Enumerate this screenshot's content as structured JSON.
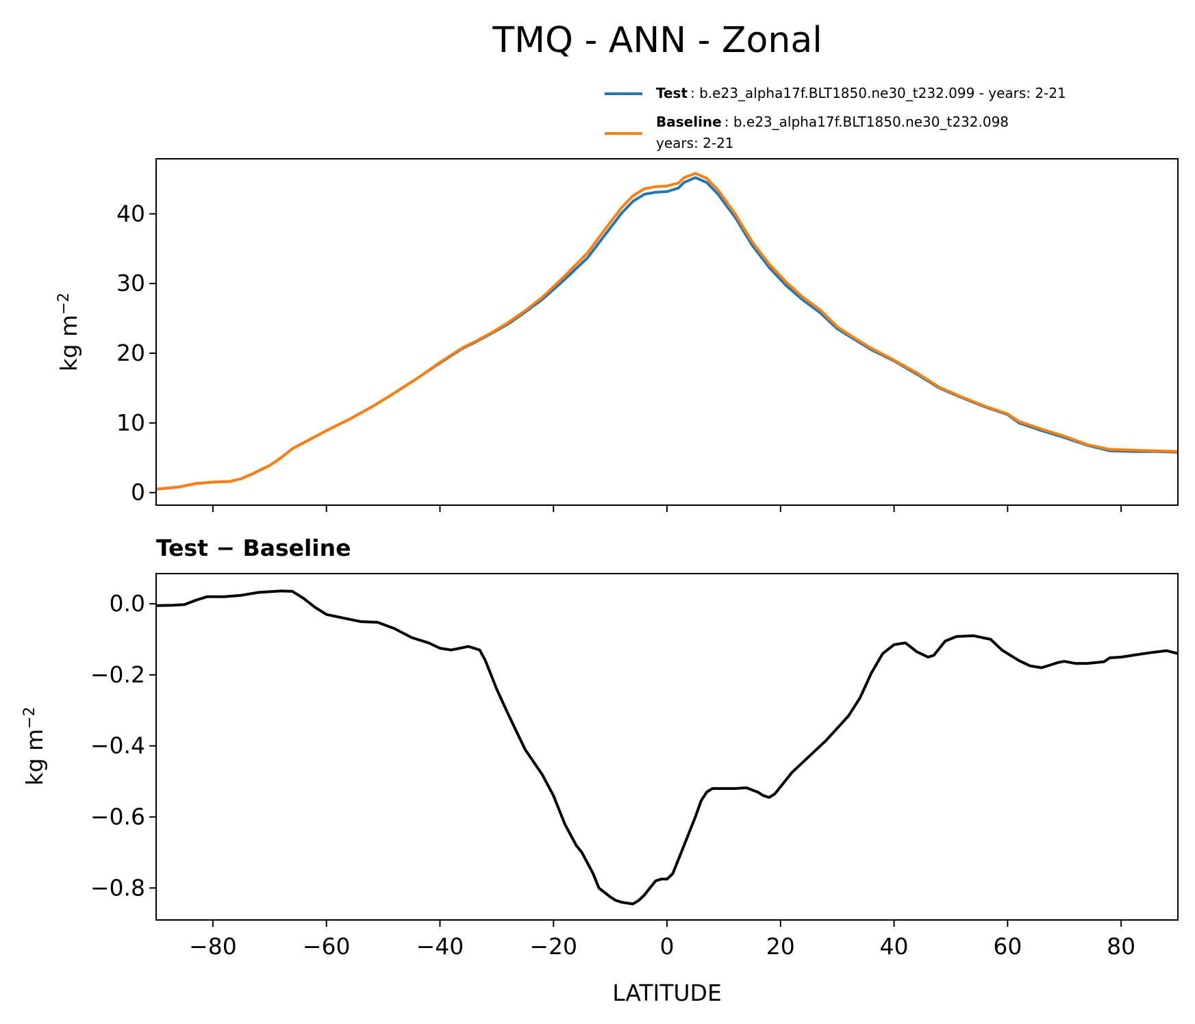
{
  "figure": {
    "title": "TMQ - ANN - Zonal",
    "xlabel": "LATITUDE"
  },
  "legend": {
    "test_label": "Test",
    "test_text": ": b.e23_alpha17f.BLT1850.ne30_t232.099 - years: 2-21",
    "baseline_label": "Baseline",
    "baseline_text": ": b.e23_alpha17f.BLT1850.ne30_t232.098",
    "baseline_text2": "years: 2-21"
  },
  "colors": {
    "test": "#1f77b4",
    "baseline": "#ff7f0e",
    "diff": "#000000"
  },
  "chart_data": [
    {
      "type": "line",
      "title": "",
      "xlabel": "",
      "ylabel": "kg m",
      "ylabel_sup": "−2",
      "xlim": [
        -90,
        90
      ],
      "ylim": [
        -1.8,
        47.9
      ],
      "xticks": [
        -80,
        -60,
        -40,
        -20,
        0,
        20,
        40,
        60,
        80
      ],
      "yticks": [
        0,
        10,
        20,
        30,
        40
      ],
      "yticklabels": [
        "0",
        "10",
        "20",
        "30",
        "40"
      ],
      "series": [
        {
          "name": "Test",
          "color": "#1f77b4",
          "x": [
            -90,
            -86,
            -83,
            -80,
            -77,
            -75,
            -73,
            -70,
            -68,
            -66,
            -63,
            -60,
            -56,
            -52,
            -48,
            -44,
            -40,
            -36,
            -34,
            -31,
            -28,
            -25,
            -22,
            -18,
            -14,
            -11,
            -8,
            -6,
            -4,
            -2,
            0,
            2,
            3,
            5,
            7,
            9,
            12,
            15,
            18,
            21,
            24,
            27,
            30,
            33,
            36,
            40,
            44,
            48,
            52,
            56,
            60,
            62,
            66,
            70,
            74,
            78,
            82,
            86,
            90
          ],
          "values": [
            0.5,
            0.8,
            1.3,
            1.5,
            1.6,
            2.0,
            2.7,
            3.9,
            5.0,
            6.3,
            7.6,
            8.9,
            10.5,
            12.3,
            14.3,
            16.4,
            18.6,
            20.7,
            21.5,
            22.8,
            24.2,
            25.9,
            27.7,
            30.6,
            33.7,
            36.9,
            40.1,
            41.8,
            42.8,
            43.1,
            43.2,
            43.7,
            44.5,
            45.2,
            44.5,
            42.8,
            39.5,
            35.5,
            32.3,
            29.7,
            27.6,
            25.8,
            23.5,
            22.0,
            20.5,
            18.9,
            17.0,
            15.0,
            13.6,
            12.3,
            11.2,
            10.0,
            8.9,
            7.9,
            6.8,
            6.0,
            5.9,
            5.9,
            5.8
          ]
        },
        {
          "name": "Baseline",
          "color": "#ff7f0e",
          "x": [
            -90,
            -86,
            -83,
            -80,
            -77,
            -75,
            -73,
            -70,
            -68,
            -66,
            -63,
            -60,
            -56,
            -52,
            -48,
            -44,
            -40,
            -36,
            -34,
            -31,
            -28,
            -25,
            -22,
            -18,
            -14,
            -11,
            -8,
            -6,
            -4,
            -2,
            0,
            2,
            3,
            5,
            7,
            9,
            12,
            15,
            18,
            21,
            24,
            27,
            30,
            33,
            36,
            40,
            44,
            48,
            52,
            56,
            60,
            62,
            66,
            70,
            74,
            78,
            82,
            86,
            90
          ],
          "values": [
            0.5,
            0.8,
            1.3,
            1.5,
            1.6,
            2.0,
            2.7,
            3.9,
            5.0,
            6.3,
            7.6,
            8.9,
            10.5,
            12.3,
            14.3,
            16.4,
            18.7,
            20.8,
            21.6,
            22.9,
            24.4,
            26.1,
            28.0,
            31.1,
            34.4,
            37.7,
            40.9,
            42.6,
            43.6,
            43.9,
            44.0,
            44.4,
            45.2,
            45.8,
            45.1,
            43.4,
            40.0,
            36.0,
            32.8,
            30.2,
            28.0,
            26.2,
            23.8,
            22.2,
            20.7,
            19.0,
            17.2,
            15.1,
            13.7,
            12.4,
            11.3,
            10.2,
            9.1,
            8.1,
            6.9,
            6.2,
            6.1,
            6.0,
            5.9
          ]
        }
      ]
    },
    {
      "type": "line",
      "title": "Test − Baseline",
      "xlabel": "LATITUDE",
      "ylabel": "kg m",
      "ylabel_sup": "−2",
      "xlim": [
        -90,
        90
      ],
      "ylim": [
        -0.89,
        0.085
      ],
      "xticks": [
        -80,
        -60,
        -40,
        -20,
        0,
        20,
        40,
        60,
        80
      ],
      "xticklabels": [
        "−80",
        "−60",
        "−40",
        "−20",
        "0",
        "20",
        "40",
        "60",
        "80"
      ],
      "yticks": [
        0.0,
        -0.2,
        -0.4,
        -0.6,
        -0.8
      ],
      "yticklabels": [
        "0.0",
        "−0.2",
        "−0.4",
        "−0.6",
        "−0.8"
      ],
      "series": [
        {
          "name": "Test − Baseline",
          "color": "#000000",
          "x": [
            -90,
            -87,
            -85,
            -83,
            -81,
            -78,
            -75,
            -72,
            -68,
            -66,
            -64,
            -62,
            -60,
            -57,
            -54,
            -51,
            -48,
            -45,
            -42,
            -40,
            -38,
            -35,
            -33,
            -32,
            -30,
            -28,
            -25,
            -22,
            -20,
            -18,
            -16,
            -15,
            -13,
            -12,
            -10,
            -9,
            -8,
            -6,
            -5,
            -4,
            -3,
            -2,
            -1,
            0,
            1,
            2,
            3,
            5,
            6,
            7,
            8,
            9,
            10,
            12,
            14,
            16,
            17,
            18,
            19,
            20,
            22,
            25,
            28,
            30,
            32,
            34,
            36,
            38,
            40,
            42,
            44,
            46,
            47,
            49,
            51,
            54,
            57,
            59,
            60,
            62,
            64,
            66,
            67,
            69,
            70,
            72,
            74,
            77,
            78,
            80,
            82,
            85,
            88,
            90
          ],
          "values": [
            -0.005,
            -0.004,
            -0.002,
            0.01,
            0.02,
            0.02,
            0.024,
            0.032,
            0.036,
            0.035,
            0.015,
            -0.01,
            -0.03,
            -0.04,
            -0.05,
            -0.052,
            -0.07,
            -0.095,
            -0.11,
            -0.125,
            -0.13,
            -0.12,
            -0.13,
            -0.16,
            -0.24,
            -0.31,
            -0.41,
            -0.48,
            -0.54,
            -0.62,
            -0.68,
            -0.7,
            -0.76,
            -0.8,
            -0.825,
            -0.835,
            -0.84,
            -0.845,
            -0.835,
            -0.82,
            -0.8,
            -0.78,
            -0.775,
            -0.775,
            -0.76,
            -0.72,
            -0.68,
            -0.6,
            -0.555,
            -0.53,
            -0.52,
            -0.52,
            -0.52,
            -0.52,
            -0.518,
            -0.53,
            -0.54,
            -0.545,
            -0.535,
            -0.515,
            -0.475,
            -0.43,
            -0.385,
            -0.35,
            -0.315,
            -0.265,
            -0.195,
            -0.14,
            -0.115,
            -0.11,
            -0.135,
            -0.15,
            -0.145,
            -0.105,
            -0.092,
            -0.09,
            -0.1,
            -0.13,
            -0.14,
            -0.16,
            -0.175,
            -0.18,
            -0.175,
            -0.165,
            -0.162,
            -0.168,
            -0.168,
            -0.163,
            -0.152,
            -0.15,
            -0.145,
            -0.138,
            -0.132,
            -0.14
          ]
        }
      ]
    }
  ]
}
